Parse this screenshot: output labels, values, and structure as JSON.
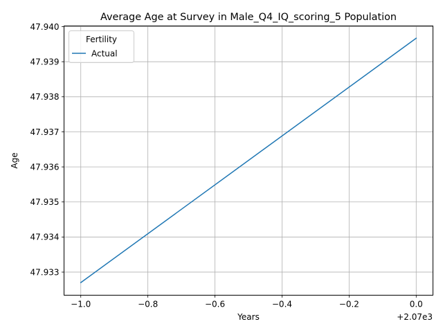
{
  "chart_data": {
    "type": "line",
    "title": "Average Age at Survey in Male_Q4_IQ_scoring_5 Population",
    "xlabel": "Years",
    "ylabel": "Age",
    "x_offset_label": "+2.07e3",
    "x_tick_labels": [
      "−1.0",
      "−0.8",
      "−0.6",
      "−0.4",
      "−0.2",
      "0.0"
    ],
    "y_tick_labels": [
      "47.933",
      "47.934",
      "47.935",
      "47.936",
      "47.937",
      "47.938",
      "47.939",
      "47.940"
    ],
    "xlim": [
      2068.95,
      2070.05
    ],
    "ylim": [
      47.93234,
      47.94002
    ],
    "x_ticks": [
      2069.0,
      2069.2,
      2069.4,
      2069.6,
      2069.8,
      2070.0
    ],
    "y_ticks": [
      47.933,
      47.934,
      47.935,
      47.936,
      47.937,
      47.938,
      47.939,
      47.94
    ],
    "grid": true,
    "legend": {
      "title": "Fertility",
      "placement": "top-left"
    },
    "series": [
      {
        "name": "Actual",
        "color": "#1f77b4",
        "x": [
          2069,
          2070
        ],
        "y": [
          47.9327,
          47.93967
        ]
      }
    ]
  }
}
